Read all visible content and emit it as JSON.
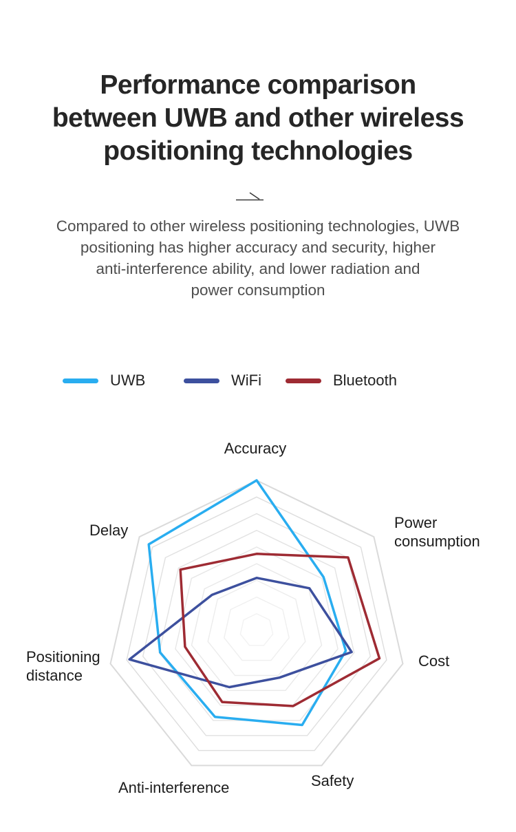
{
  "page": {
    "background": "#ffffff"
  },
  "header": {
    "title_lines": [
      "Performance comparison",
      "between UWB and other wireless",
      "positioning technologies"
    ],
    "description_lines": [
      "Compared to other wireless positioning technologies, UWB",
      "positioning has higher accuracy and security, higher",
      "anti-interference ability, and lower radiation and",
      "power consumption"
    ]
  },
  "legend": {
    "items": [
      {
        "label": "UWB",
        "color": "#29adf0"
      },
      {
        "label": "WiFi",
        "color": "#3d509e"
      },
      {
        "label": "Bluetooth",
        "color": "#9e2b33"
      }
    ]
  },
  "chart_data": {
    "type": "radar",
    "title": "Performance comparison between UWB and other wireless positioning technologies",
    "categories": [
      "Accuracy",
      "Power consumption",
      "Cost",
      "Safety",
      "Anti-interference",
      "Positioning distance",
      "Delay"
    ],
    "value_range": [
      0,
      1
    ],
    "rings": 9,
    "series": [
      {
        "name": "UWB",
        "color": "#29adf0",
        "values": [
          1.0,
          0.57,
          0.61,
          0.7,
          0.64,
          0.66,
          0.92
        ]
      },
      {
        "name": "WiFi",
        "color": "#3d509e",
        "values": [
          0.35,
          0.45,
          0.65,
          0.35,
          0.42,
          0.87,
          0.38
        ]
      },
      {
        "name": "Bluetooth",
        "color": "#9e2b33",
        "values": [
          0.51,
          0.78,
          0.84,
          0.56,
          0.53,
          0.49,
          0.65
        ]
      }
    ],
    "grid": {
      "shape": "heptagon",
      "spokes": false,
      "color_outer": "#dadada",
      "color_inner": "#f2f2f2"
    },
    "legend_position": "top"
  }
}
